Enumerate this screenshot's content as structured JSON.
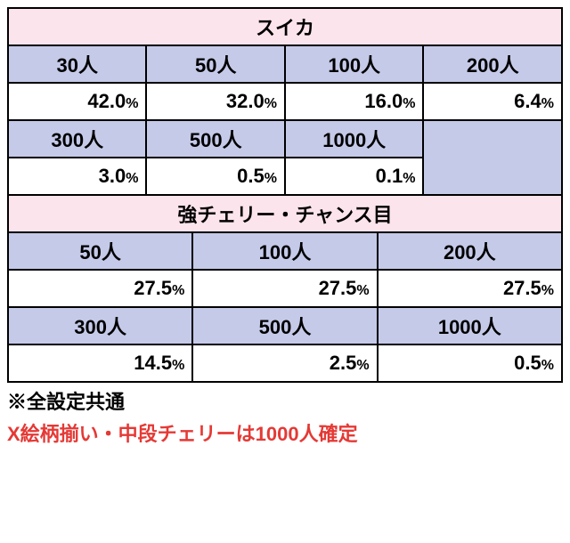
{
  "table1": {
    "title": "スイカ",
    "headers_r1": [
      "30人",
      "50人",
      "100人",
      "200人"
    ],
    "values_r1": [
      "42.0",
      "32.0",
      "16.0",
      "6.4"
    ],
    "headers_r2": [
      "300人",
      "500人",
      "1000人"
    ],
    "values_r2": [
      "3.0",
      "0.5",
      "0.1"
    ]
  },
  "table2": {
    "title": "強チェリー・チャンス目",
    "headers_r1": [
      "50人",
      "100人",
      "200人"
    ],
    "values_r1": [
      "27.5",
      "27.5",
      "27.5"
    ],
    "headers_r2": [
      "300人",
      "500人",
      "1000人"
    ],
    "values_r2": [
      "14.5",
      "2.5",
      "0.5"
    ]
  },
  "pct_symbol": "%",
  "footnote_black": "※全設定共通",
  "footnote_red": "X絵柄揃い・中段チェリーは1000人確定",
  "colors": {
    "title_bg": "#fce4ec",
    "header_bg": "#c5cae9",
    "value_bg": "#ffffff",
    "border": "#000000",
    "note_red": "#e53935"
  }
}
